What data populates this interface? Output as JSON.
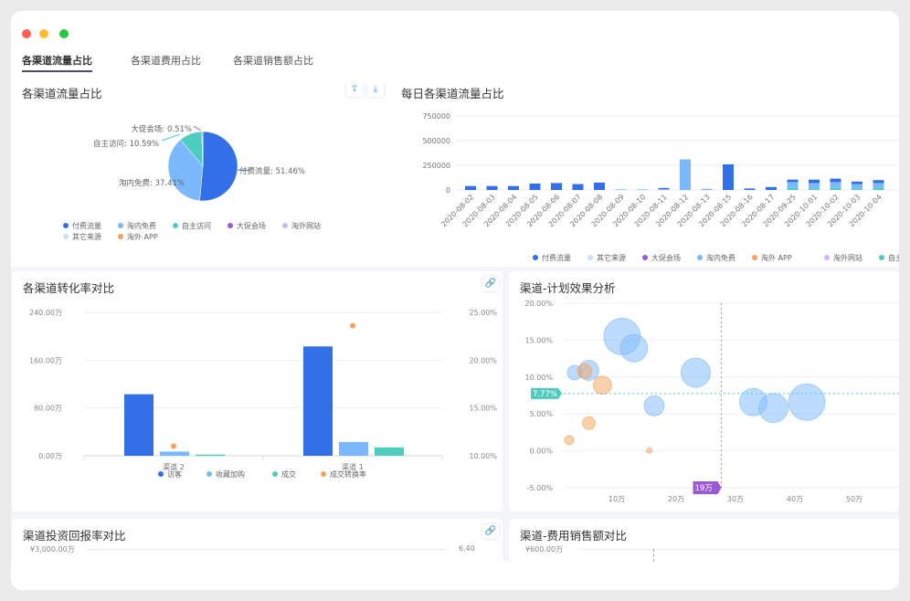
{
  "window": {
    "controls": {
      "close": "#ff5f57",
      "minimize": "#febc2e",
      "maximize": "#28c840"
    }
  },
  "tabs": [
    {
      "label": "各渠道流量占比",
      "active": true
    },
    {
      "label": "各渠道费用占比",
      "active": false
    },
    {
      "label": "各渠道销售额占比",
      "active": false
    }
  ],
  "colors": {
    "付费流量": "#3370e8",
    "淘内免费": "#7cb9fc",
    "自主访问": "#4ecdbf",
    "大促会场": "#9b59d6",
    "淘外网站": "#cdb8fa",
    "其它来源": "#c9e0fc",
    "淘外APP": "#f5a25c"
  },
  "pie": {
    "title": "各渠道流量占比",
    "icons": [
      "share-icon",
      "download-icon"
    ],
    "chart_data": {
      "type": "pie",
      "slices": [
        {
          "name": "付费流量",
          "value": 51.46,
          "label": "付费流量: 51.46%"
        },
        {
          "name": "淘内免费",
          "value": 37.41,
          "label": "淘内免费: 37.41%"
        },
        {
          "name": "自主访问",
          "value": 10.59,
          "label": "自主访问: 10.59%"
        },
        {
          "name": "大促会场",
          "value": 0.51,
          "label": "大促会场: 0.51%"
        },
        {
          "name": "淘外网站",
          "value": 0.02,
          "label": ""
        },
        {
          "name": "其它来源",
          "value": 0.01,
          "label": ""
        },
        {
          "name": "淘外APP",
          "value": 0.0,
          "label": ""
        }
      ],
      "legend": [
        "付费流量",
        "淘内免费",
        "自主访问",
        "大促会场",
        "淘外网站",
        "其它来源",
        "淘外 APP"
      ],
      "legend_placement": "bottom"
    }
  },
  "daily": {
    "title": "每日各渠道流量占比",
    "chart_data": {
      "type": "bar",
      "stacked": true,
      "ylim": [
        0,
        750000
      ],
      "yticks": [
        "750000",
        "500000",
        "250000",
        "0"
      ],
      "categories": [
        "2020-08-02",
        "2020-08-03",
        "2020-08-04",
        "2020-08-05",
        "2020-08-06",
        "2020-08-07",
        "2020-08-08",
        "2020-08-09",
        "2020-08-10",
        "2020-08-11",
        "2020-08-12",
        "2020-08-13",
        "2020-08-15",
        "2020-08-16",
        "2020-08-17",
        "2020-09-25",
        "2020-10-01",
        "2020-10-02",
        "2020-10-03",
        "2020-10-04"
      ],
      "series": [
        {
          "name": "自主访问",
          "values": [
            0,
            0,
            0,
            0,
            0,
            0,
            0,
            0,
            0,
            0,
            0,
            0,
            0,
            0,
            0,
            20000,
            15000,
            20000,
            10000,
            25000
          ]
        },
        {
          "name": "淘内免费",
          "values": [
            0,
            0,
            0,
            0,
            0,
            0,
            0,
            5000,
            5000,
            0,
            310000,
            10000,
            0,
            0,
            0,
            60000,
            55000,
            60000,
            50000,
            45000
          ]
        },
        {
          "name": "其它来源",
          "values": [
            0,
            0,
            0,
            0,
            0,
            0,
            0,
            5000,
            5000,
            5000,
            0,
            5000,
            0,
            0,
            0,
            0,
            0,
            0,
            0,
            0
          ]
        },
        {
          "name": "付费流量",
          "values": [
            40000,
            40000,
            40000,
            65000,
            70000,
            60000,
            75000,
            0,
            0,
            15000,
            0,
            0,
            260000,
            15000,
            30000,
            25000,
            35000,
            35000,
            25000,
            30000
          ]
        }
      ],
      "legend": [
        "付费流量",
        "其它来源",
        "大促会场",
        "淘内免费",
        "淘外 APP",
        "淘外网站",
        "自主访问"
      ],
      "legend_placement": "bottom"
    }
  },
  "conversion": {
    "title": "各渠道转化率对比",
    "icon": "link-icon",
    "chart_data": {
      "type": "bar",
      "categories": [
        "渠道 2",
        "渠道 1"
      ],
      "ylim": [
        0,
        240
      ],
      "y2lim": [
        10,
        25
      ],
      "yticks": [
        "240.00万",
        "160.00万",
        "80.00万",
        "0.00万"
      ],
      "y2ticks": [
        "25.00%",
        "20.00%",
        "15.00%",
        "10.00%"
      ],
      "series": [
        {
          "name": "访客",
          "values": [
            103,
            183
          ]
        },
        {
          "name": "收藏加购",
          "values": [
            7,
            23
          ]
        },
        {
          "name": "成交",
          "values": [
            2,
            14
          ]
        },
        {
          "name": "成交转换率",
          "type": "point",
          "values": [
            11.0,
            23.6
          ]
        }
      ],
      "legend": [
        "访客",
        "收藏加购",
        "成交",
        "成交转换率"
      ],
      "legend_placement": "bottom"
    }
  },
  "scatter": {
    "title": "渠道-计划效果分析",
    "chart_data": {
      "type": "scatter",
      "ylim": [
        -5,
        20
      ],
      "xlim": [
        0,
        58
      ],
      "yticks": [
        "20.00%",
        "15.00%",
        "10.00%",
        "5.00%",
        "0.00%",
        "-5.00%"
      ],
      "xticks": [
        "10万",
        "20万",
        "30万",
        "40万",
        "50万"
      ],
      "ref_y": {
        "value": 7.77,
        "label": "7.77%"
      },
      "ref_x": {
        "value": 19,
        "label": "19万"
      },
      "series": [
        {
          "color": "#7cb9fc",
          "points": [
            [
              10.9,
              15.5,
              20
            ],
            [
              12.9,
              13.9,
              15
            ],
            [
              2.9,
              10.6,
              8
            ],
            [
              5.3,
              10.9,
              11
            ],
            [
              23.3,
              10.6,
              16
            ],
            [
              16.3,
              6.1,
              11
            ],
            [
              33,
              6.6,
              15
            ],
            [
              36.4,
              5.8,
              16
            ],
            [
              42,
              6.6,
              20
            ]
          ]
        },
        {
          "color": "#f5a25c",
          "points": [
            [
              4.6,
              10.8,
              8
            ],
            [
              7.6,
              8.9,
              10
            ],
            [
              5.3,
              3.75,
              7
            ],
            [
              2.0,
              1.45,
              5
            ],
            [
              15.5,
              0.04,
              3
            ]
          ]
        }
      ]
    }
  },
  "roi": {
    "title": "渠道投资回报率对比",
    "ytick": "¥3,000.00万",
    "y2tick": "6.40",
    "icon": "link-icon"
  },
  "costsales": {
    "title": "渠道-费用销售额对比",
    "ytick": "¥600.00万"
  }
}
